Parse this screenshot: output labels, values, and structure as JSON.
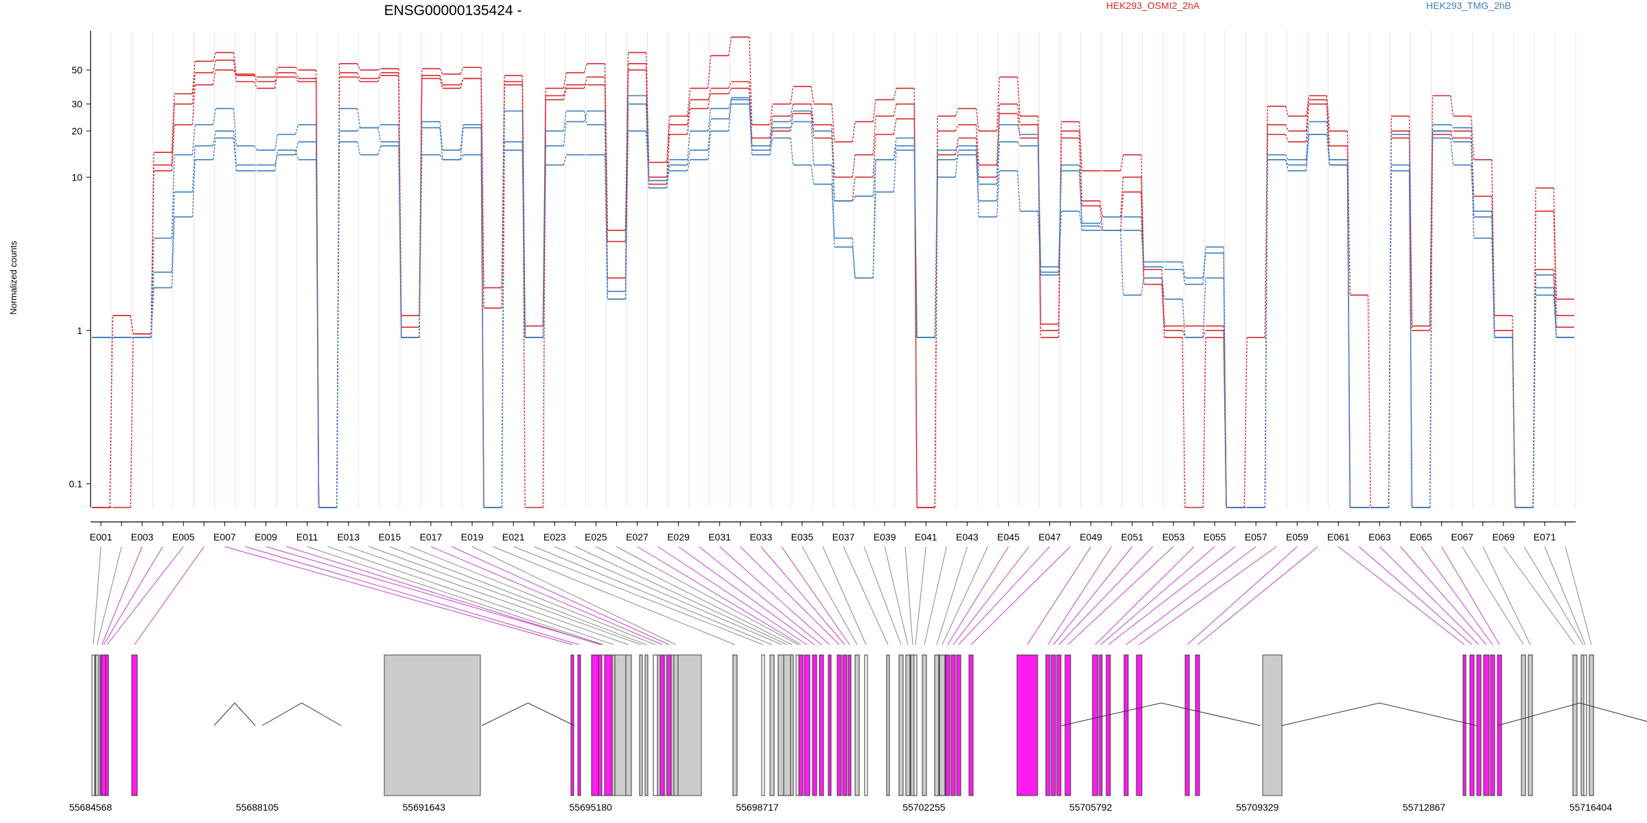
{
  "chart_data": {
    "type": "line",
    "title": "ENSG00000135424 -",
    "ylabel": "Normalized counts",
    "xlabel": "",
    "yscale": "log",
    "ylim": [
      0.07,
      90
    ],
    "y_ticks": [
      "0.1",
      "1",
      "10",
      "20",
      "30",
      "50"
    ],
    "legend": [
      {
        "name": "HEK293_OSMI2_2hA",
        "color": "#d62728"
      },
      {
        "name": "HEK293_TMG_2hB",
        "color": "#3a7dbf"
      }
    ],
    "legend_placement": "top-right",
    "exon_count": 72,
    "exon_tick_labels": [
      "E001",
      "E003",
      "E005",
      "E007",
      "E009",
      "E011",
      "E013",
      "E015",
      "E017",
      "E019",
      "E021",
      "E023",
      "E025",
      "E027",
      "E029",
      "E031",
      "E033",
      "E035",
      "E037",
      "E039",
      "E041",
      "E043",
      "E045",
      "E047",
      "E049",
      "E051",
      "E053",
      "E055",
      "E057",
      "E059",
      "E061",
      "E063",
      "E065",
      "E067",
      "E069",
      "E071"
    ],
    "genomic_coordinates": [
      "55684568",
      "55688105",
      "55691643",
      "55695180",
      "55698717",
      "55702255",
      "55705792",
      "55709329",
      "55712867",
      "55716404"
    ],
    "highlighted_exons": [
      "E003",
      "E004",
      "E005",
      "E006",
      "E007",
      "E008",
      "E009",
      "E010",
      "E017",
      "E018",
      "E027",
      "E028",
      "E029",
      "E030",
      "E031",
      "E032",
      "E033",
      "E034",
      "E045",
      "E046",
      "E047",
      "E048",
      "E049",
      "E050",
      "E051",
      "E052",
      "E053",
      "E054",
      "E055",
      "E056",
      "E057",
      "E058",
      "E059",
      "E060",
      "E061",
      "E062",
      "E063",
      "E064",
      "E065",
      "E066"
    ],
    "series": [
      {
        "name": "HEK293_OSMI2_2hA",
        "replicate": 1,
        "values": [
          0.07,
          1.25,
          0.95,
          14.5,
          35,
          57,
          65,
          47,
          45,
          52,
          50,
          0.07,
          55,
          50,
          51,
          1.25,
          51,
          47,
          52,
          1.9,
          46,
          1.07,
          38,
          48,
          55,
          4.5,
          65,
          12.5,
          25,
          38,
          62,
          82,
          22,
          30,
          39,
          30,
          17,
          23,
          32,
          38,
          0.07,
          25,
          28,
          20,
          45,
          25,
          1.1,
          23,
          11,
          11,
          14,
          2.5,
          1.07,
          1.07,
          1.07,
          0.07,
          0.9,
          29,
          25,
          34,
          20,
          1.7,
          0.07,
          25,
          1.07,
          34,
          25,
          13,
          1.25,
          0.07,
          8.5,
          1.6
        ]
      },
      {
        "name": "HEK293_OSMI2_2hA",
        "replicate": 2,
        "values": [
          0.07,
          1.25,
          0.95,
          12,
          30,
          48,
          58,
          42,
          38,
          48,
          44,
          0.07,
          48,
          44,
          48,
          1.05,
          46,
          40,
          44,
          1.4,
          42,
          0.9,
          34,
          40,
          40,
          3.8,
          55,
          10,
          22,
          32,
          35,
          38,
          18,
          25,
          30,
          22,
          10,
          14,
          25,
          30,
          0.07,
          20,
          22,
          12,
          30,
          22,
          1.0,
          20,
          7,
          5.5,
          10,
          2.2,
          1.0,
          0.9,
          1.0,
          0.07,
          0.07,
          22,
          20,
          32,
          16,
          0.07,
          0.07,
          20,
          1.0,
          20,
          20,
          7.5,
          1.0,
          0.07,
          6,
          1.25
        ]
      },
      {
        "name": "HEK293_OSMI2_2hA",
        "replicate": 3,
        "values": [
          0.07,
          0.07,
          0.9,
          11,
          22,
          40,
          50,
          46,
          42,
          45,
          42,
          0.07,
          45,
          42,
          46,
          0.9,
          44,
          38,
          44,
          0.07,
          40,
          0.07,
          32,
          38,
          45,
          2.2,
          50,
          9,
          19,
          28,
          38,
          42,
          16,
          20,
          26,
          18,
          7,
          10,
          19,
          24,
          0.07,
          14,
          18,
          10,
          26,
          18,
          0.9,
          18,
          6.5,
          4.5,
          8,
          2.0,
          0.9,
          0.07,
          0.9,
          0.07,
          0.07,
          19,
          17,
          30,
          12,
          0.07,
          0.07,
          18,
          0.07,
          19,
          18,
          5.5,
          0.9,
          0.07,
          2.5,
          1.05
        ]
      },
      {
        "name": "HEK293_TMG_2hB",
        "replicate": 1,
        "values": [
          0.9,
          0.9,
          0.9,
          4,
          14,
          22,
          28,
          16,
          15,
          19,
          22,
          0.07,
          28,
          21,
          22,
          0.9,
          23,
          15,
          22,
          0.07,
          27,
          0.9,
          20,
          27,
          22,
          1.8,
          34,
          9.5,
          13,
          20,
          28,
          32,
          16,
          23,
          27,
          20,
          7,
          7.5,
          13,
          18,
          0.9,
          15,
          16,
          9,
          22,
          19,
          2.6,
          12,
          5,
          5.5,
          5.5,
          2.8,
          2.8,
          2.2,
          3.5,
          0.07,
          0.07,
          14,
          13,
          23,
          13,
          0.07,
          0.07,
          12,
          0.07,
          22,
          21,
          6,
          0.9,
          0.07,
          1.9,
          0.9
        ]
      },
      {
        "name": "HEK293_TMG_2hB",
        "replicate": 2,
        "values": [
          0.9,
          0.9,
          0.9,
          2.4,
          8,
          16,
          20,
          12,
          12,
          14,
          17,
          0.07,
          20,
          21,
          17,
          0.9,
          21,
          13,
          21,
          0.07,
          15,
          0.9,
          16,
          23,
          27,
          1.6,
          30,
          8.5,
          12,
          15,
          24,
          30,
          15,
          21,
          23,
          12,
          4,
          2.2,
          13,
          16,
          0.9,
          13,
          14,
          7,
          17,
          16,
          2.4,
          11,
          4.8,
          4.5,
          4.5,
          2.6,
          2.5,
          2.0,
          3.2,
          0.07,
          0.07,
          13,
          12,
          19,
          13,
          0.07,
          0.07,
          11,
          0.07,
          20,
          17,
          4,
          0.9,
          0.07,
          1.7,
          0.9
        ]
      },
      {
        "name": "HEK293_TMG_2hB",
        "replicate": 3,
        "values": [
          0.9,
          0.9,
          0.9,
          1.9,
          5.5,
          13,
          18,
          11,
          11,
          15,
          13,
          0.07,
          17,
          14,
          16,
          0.9,
          14,
          13,
          14,
          0.07,
          17,
          0.9,
          12,
          14,
          14,
          1.6,
          20,
          9.5,
          11,
          13,
          20,
          33,
          14,
          18,
          12,
          9,
          3.5,
          2.2,
          8,
          15,
          0.9,
          10,
          15,
          5.5,
          11,
          6,
          2.3,
          6,
          4.5,
          4.5,
          1.7,
          2.2,
          1.6,
          0.9,
          2.2,
          0.07,
          0.07,
          13,
          11,
          19,
          12,
          0.07,
          0.07,
          19,
          0.07,
          18,
          12,
          5.5,
          0.9,
          0.07,
          2.3,
          0.9
        ]
      }
    ]
  }
}
